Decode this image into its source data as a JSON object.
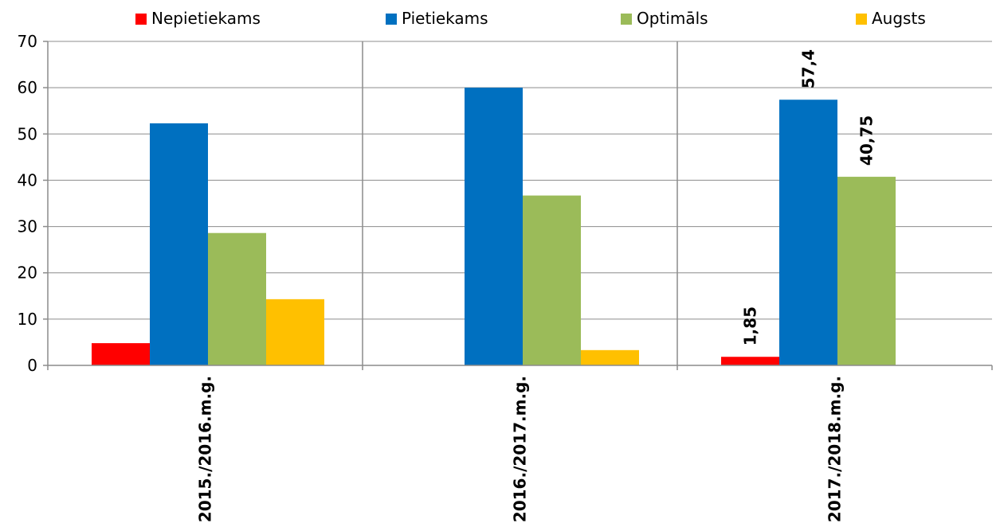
{
  "chart_data": {
    "type": "bar",
    "categories": [
      "2015./2016.m.g.",
      "2016./2017.m.g.",
      "2017./2018.m.g."
    ],
    "series": [
      {
        "name": "Nepietiekams",
        "color": "#FF0000",
        "values": [
          4.8,
          0,
          1.85
        ]
      },
      {
        "name": "Pietiekams",
        "color": "#0070C0",
        "values": [
          52.3,
          60,
          57.4
        ]
      },
      {
        "name": "Optimāls",
        "color": "#9BBB59",
        "values": [
          28.6,
          36.7,
          40.75
        ]
      },
      {
        "name": "Augsts",
        "color": "#FFC000",
        "values": [
          14.3,
          3.3,
          0
        ]
      }
    ],
    "data_labels": [
      {
        "series": 0,
        "category": 2,
        "text": "1,85"
      },
      {
        "series": 1,
        "category": 2,
        "text": "57,4"
      },
      {
        "series": 2,
        "category": 2,
        "text": "40,75"
      }
    ],
    "yticks": [
      "0",
      "10",
      "20",
      "30",
      "40",
      "50",
      "60",
      "70"
    ],
    "ylim": [
      0,
      70
    ],
    "grid": "horizontal",
    "legend_position": "top",
    "title": "",
    "xlabel": "",
    "ylabel": ""
  }
}
